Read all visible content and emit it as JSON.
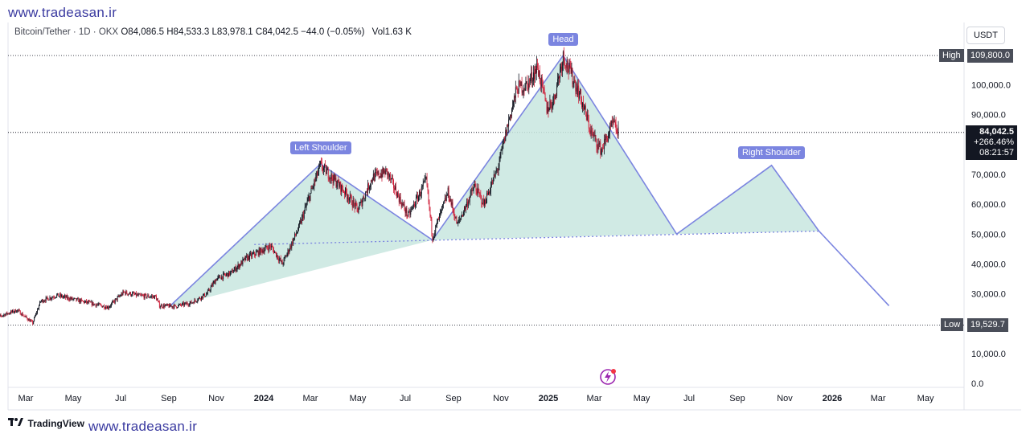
{
  "watermark_top": "www.tradeasan.ir",
  "watermark_bottom": "www.tradeasan.ir",
  "legend": {
    "symbol": "Bitcoin/Tether · 1D · OKX",
    "o_label": "O",
    "o_val": "84,086.5",
    "h_label": "H",
    "h_val": "84,533.3",
    "l_label": "L",
    "l_val": "83,978.1",
    "c_label": "C",
    "c_val": "84,042.5",
    "change": "−44.0 (−0.05%)",
    "vol_label": "Vol",
    "vol_val": "1.63 K"
  },
  "currency_button": "USDT",
  "high_box": {
    "label": "High",
    "value": "109,800.0"
  },
  "low_box": {
    "label": "Low",
    "value": "19,529.7"
  },
  "current_box": {
    "price": "84,042.5",
    "change": "+266.46%",
    "countdown": "08:21:57"
  },
  "pattern_labels": {
    "head": "Head",
    "left_shoulder": "Left Shoulder",
    "right_shoulder": "Right Shoulder"
  },
  "brand": "TradingView",
  "colors": {
    "up": "#131722",
    "down": "#d0203a",
    "pattern_line": "#7b85e0",
    "pattern_fill": "#c8e6df",
    "tag": "#7b85e0"
  },
  "chart_data": {
    "type": "candlestick",
    "symbol": "Bitcoin/Tether",
    "interval": "1D",
    "y_ticks": [
      0,
      10000,
      20000,
      30000,
      40000,
      50000,
      60000,
      70000,
      80000,
      90000,
      100000
    ],
    "y_tick_labels": [
      "0.0",
      "10,000.0",
      "",
      "30,000.0",
      "40,000.0",
      "50,000.0",
      "60,000.0",
      "70,000.0",
      "",
      "90,000.0",
      "100,000.0"
    ],
    "x_ticks": [
      "2023-03",
      "2023-05",
      "2023-07",
      "2023-09",
      "2023-11",
      "2024-01",
      "2024-03",
      "2024-05",
      "2024-07",
      "2024-09",
      "2024-11",
      "2025-01",
      "2025-03",
      "2025-05",
      "2025-07",
      "2025-09",
      "2025-11",
      "2026-01",
      "2026-03",
      "2026-05"
    ],
    "x_tick_labels": [
      "Mar",
      "May",
      "Jul",
      "Sep",
      "Nov",
      "2024",
      "Mar",
      "May",
      "Jul",
      "Sep",
      "Nov",
      "2025",
      "Mar",
      "May",
      "Jul",
      "Sep",
      "Nov",
      "2026",
      "Mar",
      "May"
    ],
    "high": 109800,
    "low": 19529.7,
    "last": 84042.5,
    "price_path": [
      [
        "2023-01-18",
        21500
      ],
      [
        "2023-02-01",
        23000
      ],
      [
        "2023-02-18",
        24500
      ],
      [
        "2023-03-10",
        20200
      ],
      [
        "2023-03-20",
        27500
      ],
      [
        "2023-04-10",
        29500
      ],
      [
        "2023-04-25",
        28500
      ],
      [
        "2023-05-20",
        27000
      ],
      [
        "2023-06-15",
        25500
      ],
      [
        "2023-07-05",
        30500
      ],
      [
        "2023-07-25",
        29300
      ],
      [
        "2023-08-15",
        29000
      ],
      [
        "2023-08-20",
        26000
      ],
      [
        "2023-09-10",
        25800
      ],
      [
        "2023-09-30",
        27000
      ],
      [
        "2023-10-20",
        30000
      ],
      [
        "2023-11-01",
        35000
      ],
      [
        "2023-11-20",
        37000
      ],
      [
        "2023-12-10",
        42000
      ],
      [
        "2024-01-10",
        46000
      ],
      [
        "2024-01-25",
        40000
      ],
      [
        "2024-02-15",
        52000
      ],
      [
        "2024-02-28",
        62000
      ],
      [
        "2024-03-14",
        73000
      ],
      [
        "2024-04-01",
        68000
      ],
      [
        "2024-04-15",
        64000
      ],
      [
        "2024-05-01",
        58000
      ],
      [
        "2024-05-20",
        69000
      ],
      [
        "2024-06-07",
        71000
      ],
      [
        "2024-06-25",
        61000
      ],
      [
        "2024-07-05",
        56000
      ],
      [
        "2024-07-28",
        68000
      ],
      [
        "2024-08-05",
        49000
      ],
      [
        "2024-08-25",
        64000
      ],
      [
        "2024-09-06",
        53000
      ],
      [
        "2024-09-28",
        66000
      ],
      [
        "2024-10-10",
        60000
      ],
      [
        "2024-10-28",
        72000
      ],
      [
        "2024-11-12",
        89000
      ],
      [
        "2024-11-22",
        99000
      ],
      [
        "2024-12-05",
        100000
      ],
      [
        "2024-12-18",
        106000
      ],
      [
        "2024-12-30",
        92000
      ],
      [
        "2025-01-08",
        95000
      ],
      [
        "2025-01-20",
        109800
      ],
      [
        "2025-02-10",
        97000
      ],
      [
        "2025-02-25",
        84000
      ],
      [
        "2025-03-10",
        78000
      ],
      [
        "2025-03-25",
        87000
      ],
      [
        "2025-04-01",
        84042.5
      ]
    ],
    "pattern": {
      "start": [
        "2023-09-01",
        25500
      ],
      "left_shoulder_base": [
        "2023-12-25",
        46500
      ],
      "left_shoulder": [
        "2024-03-14",
        73500
      ],
      "neck_left": [
        "2024-08-05",
        48000
      ],
      "head": [
        "2025-01-20",
        109800
      ],
      "neck_right": [
        "2025-06-15",
        50000
      ],
      "right_shoulder": [
        "2025-10-15",
        73000
      ],
      "neck_end": [
        "2025-12-15",
        51000
      ],
      "target": [
        "2026-03-15",
        26000
      ]
    }
  }
}
